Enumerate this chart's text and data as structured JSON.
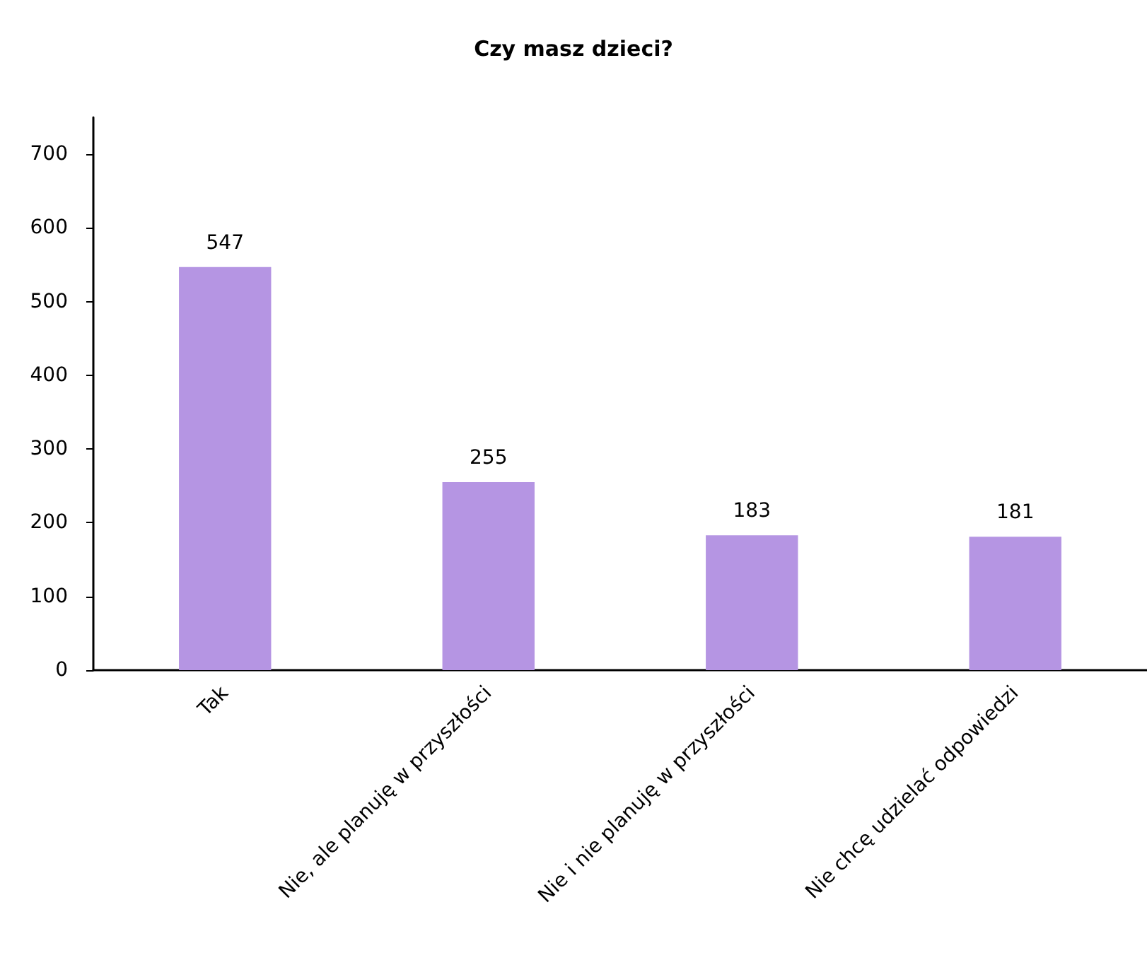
{
  "chart_data": {
    "type": "bar",
    "title": "Czy masz dzieci?",
    "categories": [
      "Tak",
      "Nie, ale planuję w przyszłości",
      "Nie i nie planuję w przyszłości",
      "Nie chcę udzielać odpowiedzi"
    ],
    "values": [
      547,
      255,
      183,
      181
    ],
    "color": "#b595e3",
    "ylim": [
      0,
      750
    ],
    "yticks": [
      0,
      100,
      200,
      300,
      400,
      500,
      600,
      700
    ],
    "data_labels": true,
    "grid": false
  }
}
